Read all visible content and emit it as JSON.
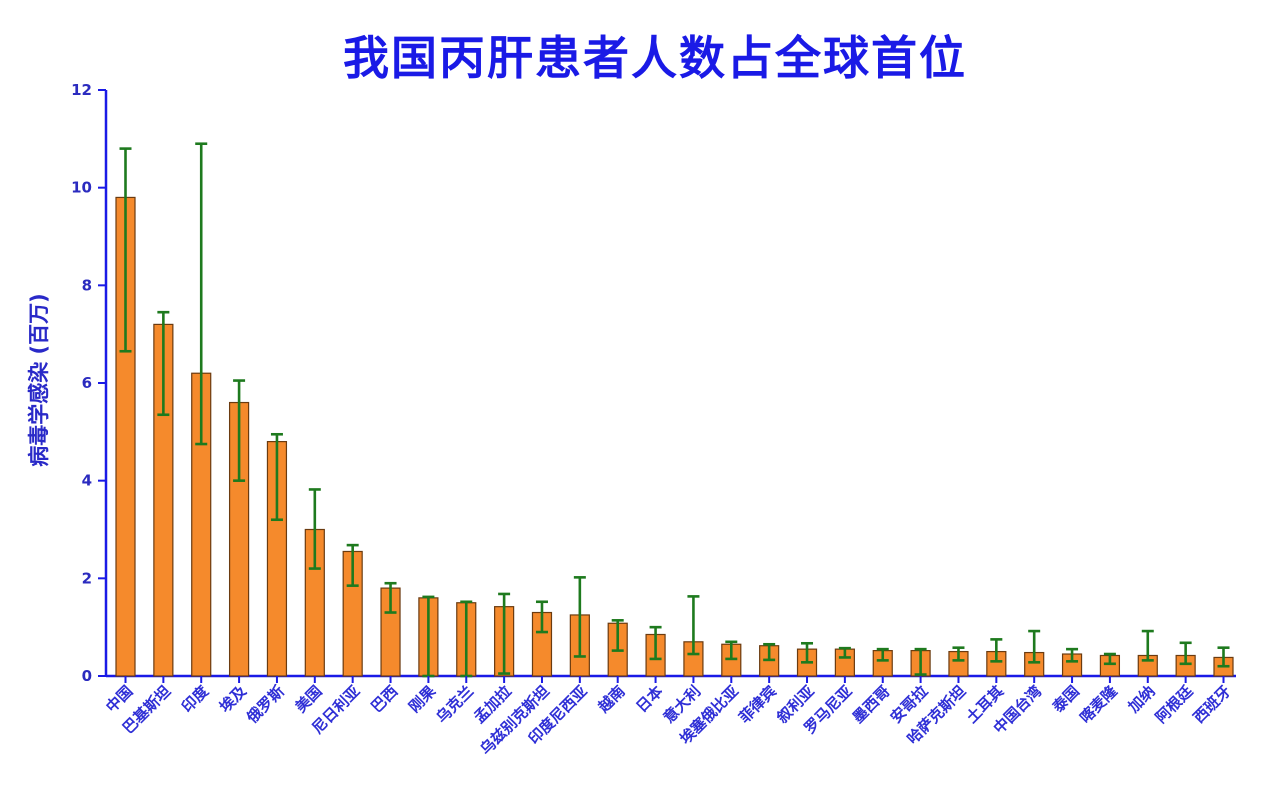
{
  "chart_data": {
    "type": "bar",
    "title": "我国丙肝患者人数占全球首位",
    "xlabel": "",
    "ylabel": "病毒学感染 (百万)",
    "ylim": [
      0,
      12
    ],
    "yticks": [
      0,
      2,
      4,
      6,
      8,
      10,
      12
    ],
    "grid": false,
    "legend": "none",
    "categories": [
      "中国",
      "巴基斯坦",
      "印度",
      "埃及",
      "俄罗斯",
      "美国",
      "尼日利亚",
      "巴西",
      "刚果",
      "乌克兰",
      "孟加拉",
      "乌兹别克斯坦",
      "印度尼西亚",
      "越南",
      "日本",
      "意大利",
      "埃塞俄比亚",
      "菲律宾",
      "叙利亚",
      "罗马尼亚",
      "墨西哥",
      "安哥拉",
      "哈萨克斯坦",
      "土耳其",
      "中国台湾",
      "泰国",
      "喀麦隆",
      "加纳",
      "阿根廷",
      "西班牙"
    ],
    "values": [
      9.8,
      7.2,
      6.2,
      5.6,
      4.8,
      3.0,
      2.55,
      1.8,
      1.6,
      1.5,
      1.42,
      1.3,
      1.25,
      1.08,
      0.85,
      0.7,
      0.65,
      0.62,
      0.55,
      0.55,
      0.52,
      0.52,
      0.5,
      0.5,
      0.48,
      0.45,
      0.42,
      0.42,
      0.42,
      0.38
    ],
    "err_low": [
      6.65,
      5.35,
      4.75,
      4.0,
      3.2,
      2.2,
      1.85,
      1.3,
      0.0,
      0.0,
      0.05,
      0.9,
      0.4,
      0.52,
      0.35,
      0.45,
      0.35,
      0.33,
      0.28,
      0.38,
      0.32,
      0.03,
      0.32,
      0.3,
      0.28,
      0.3,
      0.25,
      0.32,
      0.25,
      0.2
    ],
    "err_high": [
      10.8,
      7.45,
      10.9,
      6.05,
      4.95,
      3.82,
      2.68,
      1.9,
      1.62,
      1.52,
      1.68,
      1.52,
      2.02,
      1.14,
      1.0,
      1.63,
      0.7,
      0.65,
      0.67,
      0.57,
      0.55,
      0.55,
      0.58,
      0.75,
      0.92,
      0.55,
      0.45,
      0.92,
      0.68,
      0.58
    ],
    "colors": {
      "bar": "#f58a2c",
      "bar_edge": "#6b3b10",
      "error_bar": "#1e7a1e",
      "axis": "#1a1ae6",
      "title": "#1a1ae6"
    }
  }
}
